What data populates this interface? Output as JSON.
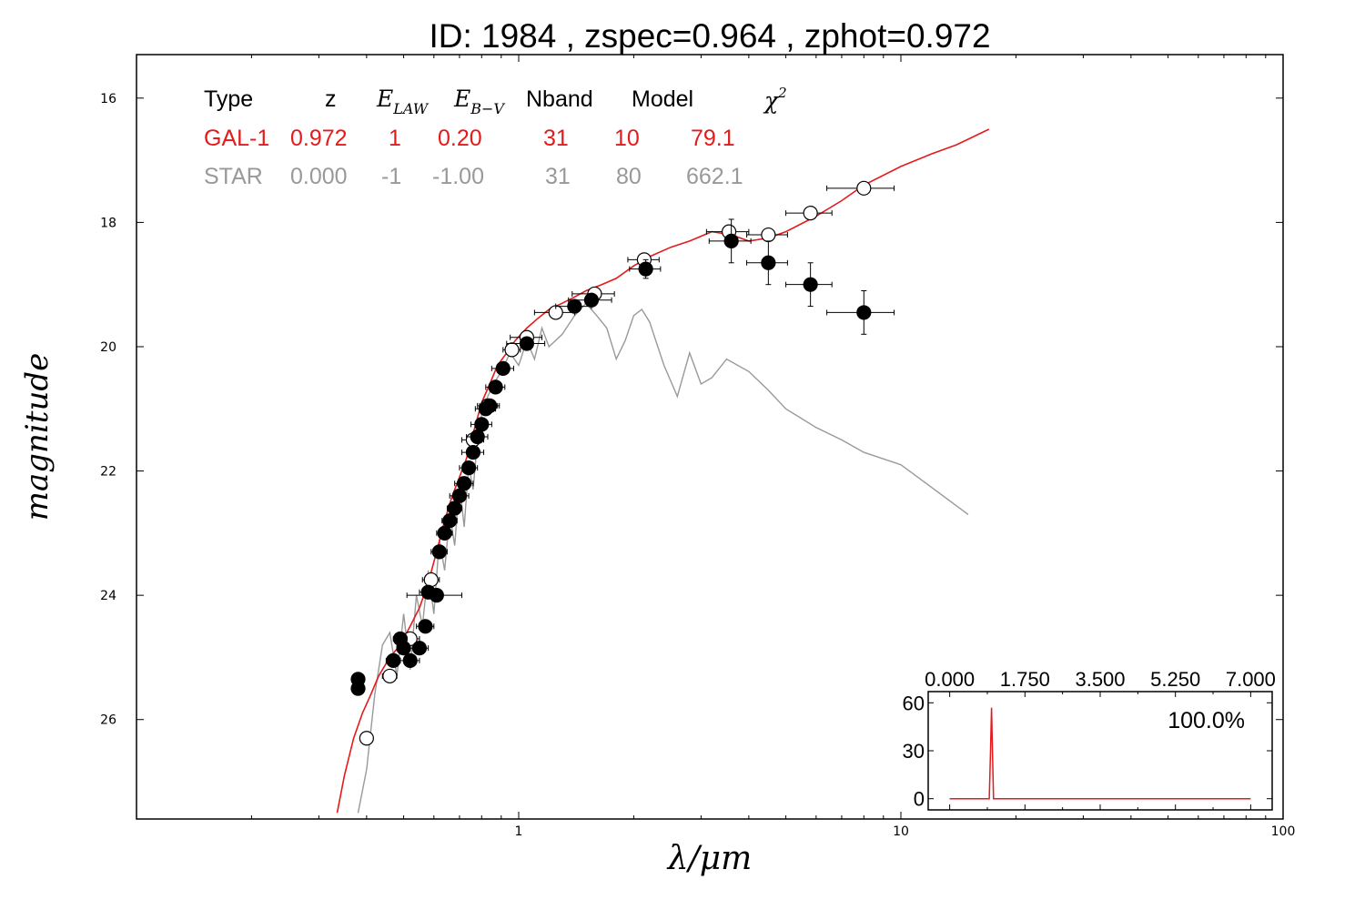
{
  "chart_data": [
    {
      "type": "scatter",
      "title": "ID:  1984  , zspec=0.964 , zphot=0.972",
      "xlabel": "λ/μm",
      "ylabel": "magnitude",
      "xscale": "log",
      "xlim": [
        0.1,
        100
      ],
      "ylim": [
        27.6,
        15.3
      ],
      "y_inverted": true,
      "x_tick_labels": [
        "1",
        "10",
        "100"
      ],
      "x_ticks": [
        1,
        10,
        100
      ],
      "y_tick_labels": [
        "16",
        "18",
        "20",
        "22",
        "24",
        "26"
      ],
      "y_ticks": [
        16,
        18,
        20,
        22,
        24,
        26
      ],
      "fit_table": {
        "headers": [
          "Type",
          "z",
          "E_LAW",
          "E_B-V",
          "Nband",
          "Model",
          "χ²"
        ],
        "rows": [
          {
            "type": "GAL-1",
            "z": "0.972",
            "law": "1",
            "ebv": "0.20",
            "nband": "31",
            "model": "10",
            "chi2": "79.1",
            "color": "#e41a1c"
          },
          {
            "type": "STAR",
            "z": "0.000",
            "law": "-1",
            "ebv": "-1.00",
            "nband": "31",
            "model": "80",
            "chi2": "662.1",
            "color": "#999999"
          }
        ]
      },
      "series": [
        {
          "name": "galaxy template",
          "kind": "line",
          "color": "#e41a1c",
          "x": [
            0.335,
            0.35,
            0.37,
            0.39,
            0.41,
            0.43,
            0.46,
            0.49,
            0.52,
            0.55,
            0.58,
            0.61,
            0.64,
            0.67,
            0.7,
            0.73,
            0.76,
            0.8,
            0.84,
            0.88,
            0.93,
            0.98,
            1.05,
            1.12,
            1.2,
            1.3,
            1.4,
            1.5,
            1.65,
            1.8,
            2.0,
            2.2,
            2.5,
            2.8,
            3.2,
            3.6,
            4.0,
            4.5,
            5.0,
            6.0,
            7.0,
            8.0,
            10.0,
            12.0,
            14.0,
            17.0
          ],
          "y": [
            27.5,
            26.9,
            26.3,
            25.9,
            25.6,
            25.3,
            25.0,
            24.8,
            24.5,
            24.2,
            23.8,
            23.3,
            22.8,
            22.4,
            22.1,
            21.8,
            21.4,
            20.9,
            20.6,
            20.3,
            20.1,
            19.9,
            19.7,
            19.55,
            19.4,
            19.3,
            19.2,
            19.1,
            19.0,
            18.9,
            18.7,
            18.55,
            18.4,
            18.3,
            18.15,
            18.2,
            18.3,
            18.25,
            18.15,
            17.9,
            17.65,
            17.4,
            17.1,
            16.9,
            16.75,
            16.5
          ]
        },
        {
          "name": "star template",
          "kind": "line",
          "color": "#999999",
          "x": [
            0.38,
            0.4,
            0.42,
            0.44,
            0.46,
            0.48,
            0.5,
            0.52,
            0.54,
            0.56,
            0.58,
            0.6,
            0.62,
            0.64,
            0.66,
            0.68,
            0.7,
            0.72,
            0.74,
            0.76,
            0.78,
            0.8,
            0.83,
            0.86,
            0.9,
            0.95,
            1.0,
            1.05,
            1.1,
            1.15,
            1.2,
            1.3,
            1.4,
            1.5,
            1.6,
            1.7,
            1.8,
            1.9,
            2.0,
            2.1,
            2.2,
            2.4,
            2.6,
            2.8,
            3.0,
            3.2,
            3.5,
            4.0,
            4.5,
            5.0,
            6.0,
            7.0,
            8.0,
            10.0,
            15.0
          ],
          "y": [
            27.5,
            26.8,
            25.6,
            24.8,
            24.6,
            25.3,
            24.3,
            25.2,
            24.0,
            24.5,
            23.6,
            24.3,
            23.1,
            23.6,
            22.7,
            23.2,
            22.2,
            22.9,
            21.9,
            22.3,
            21.5,
            21.1,
            20.8,
            20.6,
            20.4,
            20.1,
            20.3,
            19.9,
            20.2,
            19.7,
            20.0,
            19.8,
            19.5,
            19.3,
            19.5,
            19.7,
            20.2,
            19.9,
            19.5,
            19.4,
            19.6,
            20.3,
            20.8,
            20.1,
            20.6,
            20.5,
            20.2,
            20.4,
            20.7,
            21.0,
            21.3,
            21.5,
            21.7,
            21.9,
            22.7
          ]
        },
        {
          "name": "observed photometry",
          "kind": "scatter",
          "marker": "filled",
          "color": "#000000",
          "x": [
            0.38,
            0.38,
            0.47,
            0.49,
            0.5,
            0.52,
            0.55,
            0.57,
            0.58,
            0.61,
            0.62,
            0.64,
            0.66,
            0.68,
            0.7,
            0.72,
            0.74,
            0.76,
            0.78,
            0.8,
            0.82,
            0.84,
            0.87,
            0.91,
            1.05,
            1.4,
            1.55,
            2.15,
            3.6,
            4.5,
            5.8,
            8.0
          ],
          "y": [
            25.5,
            25.35,
            25.05,
            24.7,
            24.85,
            25.05,
            24.85,
            24.5,
            23.95,
            24.0,
            23.3,
            23.0,
            22.8,
            22.6,
            22.4,
            22.2,
            21.95,
            21.7,
            21.45,
            21.25,
            21.0,
            20.95,
            20.65,
            20.35,
            19.95,
            19.35,
            19.25,
            18.75,
            18.3,
            18.65,
            19.0,
            19.45
          ],
          "xerr": [
            0.01,
            0.01,
            0.02,
            0.02,
            0.02,
            0.03,
            0.03,
            0.03,
            0.03,
            0.1,
            0.03,
            0.03,
            0.03,
            0.03,
            0.04,
            0.04,
            0.04,
            0.05,
            0.05,
            0.05,
            0.05,
            0.05,
            0.05,
            0.06,
            0.12,
            0.15,
            0.2,
            0.2,
            0.45,
            0.55,
            0.8,
            1.6
          ],
          "yerr": [
            0.1,
            0.1,
            0.08,
            0.08,
            0.08,
            0.08,
            0.07,
            0.07,
            0.07,
            0.06,
            0.06,
            0.06,
            0.06,
            0.06,
            0.05,
            0.05,
            0.05,
            0.05,
            0.05,
            0.05,
            0.05,
            0.05,
            0.05,
            0.05,
            0.05,
            0.05,
            0.05,
            0.15,
            0.35,
            0.35,
            0.35,
            0.35
          ]
        },
        {
          "name": "model photometry",
          "kind": "scatter",
          "marker": "open",
          "color": "#000000",
          "x": [
            0.4,
            0.46,
            0.52,
            0.59,
            0.76,
            0.83,
            0.96,
            1.05,
            1.25,
            1.58,
            2.13,
            3.55,
            4.5,
            5.8,
            8.0
          ],
          "y": [
            26.3,
            25.3,
            24.7,
            23.75,
            21.5,
            20.95,
            20.05,
            19.85,
            19.45,
            19.15,
            18.6,
            18.15,
            18.2,
            17.85,
            17.45
          ],
          "xerr": [
            0.01,
            0.02,
            0.03,
            0.03,
            0.05,
            0.05,
            0.05,
            0.1,
            0.15,
            0.2,
            0.2,
            0.45,
            0.55,
            0.8,
            1.6
          ],
          "yerr": [
            0,
            0,
            0,
            0,
            0,
            0,
            0,
            0,
            0,
            0,
            0,
            0,
            0,
            0,
            0
          ]
        }
      ]
    },
    {
      "type": "line",
      "title": "",
      "x_tick_labels": [
        "0.000",
        "1.750",
        "3.500",
        "5.250",
        "7.000"
      ],
      "x_ticks": [
        0,
        1.75,
        3.5,
        5.25,
        7.0
      ],
      "y_tick_labels": [
        "60",
        "30",
        "0"
      ],
      "y_ticks": [
        60,
        30,
        0
      ],
      "xlim": [
        -0.5,
        7.5
      ],
      "ylim": [
        -7,
        67
      ],
      "annotation": "100.0%",
      "series": [
        {
          "name": "redshift PDF",
          "color": "#e41a1c",
          "x": [
            0.0,
            0.92,
            0.95,
            0.972,
            0.995,
            1.02,
            7.0
          ],
          "y": [
            0,
            0,
            30,
            57,
            30,
            0,
            0
          ]
        }
      ]
    }
  ]
}
